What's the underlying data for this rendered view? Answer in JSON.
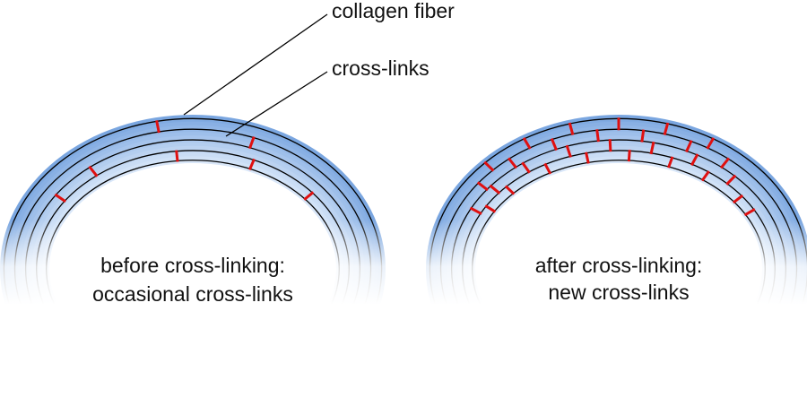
{
  "labels": {
    "collagen_fiber": "collagen fiber",
    "cross_links": "cross-links"
  },
  "panels": [
    {
      "caption": [
        "before cross-linking:",
        "occasional cross-links"
      ]
    },
    {
      "caption": [
        "after cross-linking:",
        "new cross-links"
      ]
    }
  ]
}
